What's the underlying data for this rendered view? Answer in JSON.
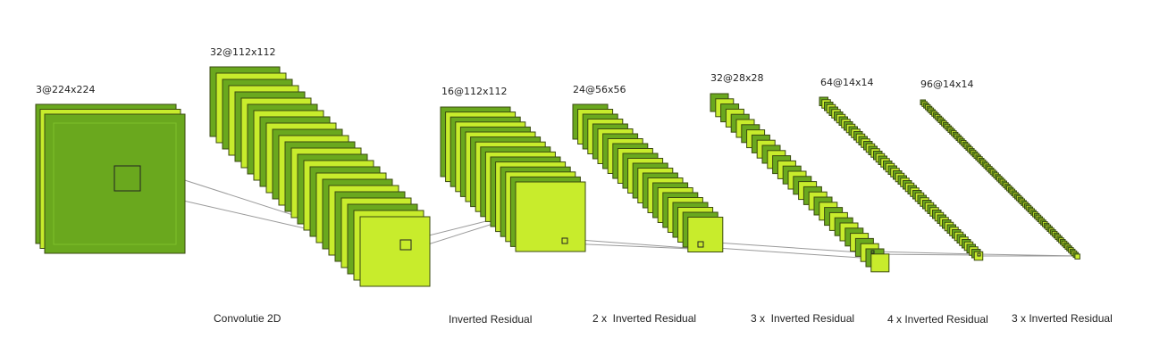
{
  "colors": {
    "dark": "#6aa81e",
    "light": "#c8ec2c",
    "stroke": "#3a4a10"
  },
  "layers": [
    {
      "dims": "3@224x224"
    },
    {
      "dims": "32@112x112"
    },
    {
      "dims": "16@112x112"
    },
    {
      "dims": "24@56x56"
    },
    {
      "dims": "32@28x28"
    },
    {
      "dims": "64@14x14"
    },
    {
      "dims": "96@14x14"
    }
  ],
  "operations": [
    {
      "label": "Convolutie 2D"
    },
    {
      "label": "Inverted Residual"
    },
    {
      "label": "2 x  Inverted Residual"
    },
    {
      "label": "3 x  Inverted Residual"
    },
    {
      "label": "4 x Inverted Residual"
    },
    {
      "label": "3 x Inverted Residual"
    }
  ]
}
